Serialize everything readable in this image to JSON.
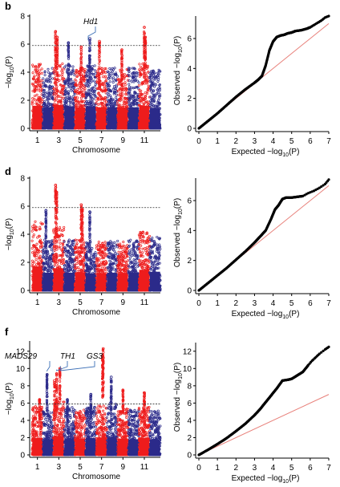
{
  "colors": {
    "odd_chromosome": "#ee1c1c",
    "even_chromosome": "#2b2a8a",
    "threshold_line": "#333333",
    "qq_points": "#000000",
    "qq_reference_line": "#e8807a",
    "callout_line": "#3b6fb6"
  },
  "chart_data": [
    {
      "panel": "b",
      "type": "scatter",
      "subtype": "manhattan",
      "xlabel": "Chromosome",
      "ylabel": "−log10(P)",
      "ylabel_parts": [
        "−log",
        "10",
        "(P)"
      ],
      "ylim": [
        0,
        8
      ],
      "yticks": [
        0,
        2,
        4,
        6,
        8
      ],
      "xticks": [
        "1",
        "3",
        "5",
        "7",
        "9",
        "11"
      ],
      "chromosomes": [
        1,
        2,
        3,
        4,
        5,
        6,
        7,
        8,
        9,
        10,
        11,
        12
      ],
      "threshold": 5.9,
      "noise_level": [
        4.6,
        4.3,
        4.8,
        4.5,
        4.3,
        4.5,
        4.3,
        4.3,
        4.3,
        4.3,
        4.6,
        4.2
      ],
      "peaks": [
        {
          "chromosome": 3,
          "position": 0.2,
          "value": 6.9
        },
        {
          "chromosome": 3,
          "position": 0.35,
          "value": 6.5
        },
        {
          "chromosome": 4,
          "position": 0.4,
          "value": 6.1
        },
        {
          "chromosome": 5,
          "position": 0.6,
          "value": 5.8
        },
        {
          "chromosome": 6,
          "position": 0.4,
          "value": 6.4
        },
        {
          "chromosome": 7,
          "position": 0.3,
          "value": 6.2
        },
        {
          "chromosome": 9,
          "position": 0.4,
          "value": 5.6
        },
        {
          "chromosome": 11,
          "position": 0.5,
          "value": 7.2
        },
        {
          "chromosome": 11,
          "position": 0.6,
          "value": 6.5
        }
      ],
      "annotations": [
        {
          "label": "Hd1",
          "chromosome": 6,
          "position": 0.25,
          "value": 6.1
        }
      ]
    },
    {
      "panel": "b",
      "type": "scatter",
      "subtype": "qq",
      "xlabel": "Expected −log10(P)",
      "xlabel_parts": [
        "Expected −log",
        "10",
        "(P)"
      ],
      "ylabel": "Observed −log10(P)",
      "ylabel_parts": [
        "Observed −log",
        "10",
        "(P)"
      ],
      "xlim": [
        0,
        7
      ],
      "ylim": [
        0,
        7.5
      ],
      "xticks": [
        0,
        1,
        2,
        3,
        4,
        5,
        6,
        7
      ],
      "yticks": [
        0,
        2,
        4,
        6
      ],
      "reference_slope": 1,
      "x": [
        0,
        0.5,
        1,
        1.5,
        2,
        2.5,
        3,
        3.2,
        3.4,
        3.6,
        3.8,
        4.0,
        4.2,
        4.4,
        4.6,
        4.8,
        5.0,
        5.2,
        5.5,
        5.8,
        6.0,
        6.2,
        6.4,
        6.6,
        6.8,
        7.0
      ],
      "y": [
        0,
        0.5,
        1.0,
        1.55,
        2.1,
        2.6,
        3.05,
        3.25,
        3.5,
        4.2,
        5.2,
        5.8,
        6.1,
        6.2,
        6.25,
        6.35,
        6.4,
        6.5,
        6.55,
        6.65,
        6.75,
        6.9,
        7.05,
        7.2,
        7.4,
        7.5
      ]
    },
    {
      "panel": "d",
      "type": "scatter",
      "subtype": "manhattan",
      "xlabel": "Chromosome",
      "ylabel": "−log10(P)",
      "ylabel_parts": [
        "−log",
        "10",
        "(P)"
      ],
      "ylim": [
        0,
        8
      ],
      "yticks": [
        0,
        2,
        4,
        6,
        8
      ],
      "xticks": [
        "1",
        "3",
        "5",
        "7",
        "9",
        "11"
      ],
      "chromosomes": [
        1,
        2,
        3,
        4,
        5,
        6,
        7,
        8,
        9,
        10,
        11,
        12
      ],
      "threshold": 5.9,
      "noise_level": [
        4.9,
        3.6,
        4.5,
        3.6,
        3.7,
        3.5,
        3.5,
        3.6,
        3.5,
        3.6,
        4.2,
        3.8
      ],
      "peaks": [
        {
          "chromosome": 2,
          "position": 0.3,
          "value": 5.7
        },
        {
          "chromosome": 3,
          "position": 0.2,
          "value": 7.5
        },
        {
          "chromosome": 3,
          "position": 0.3,
          "value": 7.0
        },
        {
          "chromosome": 5,
          "position": 0.6,
          "value": 6.1
        },
        {
          "chromosome": 5,
          "position": 0.7,
          "value": 5.8
        },
        {
          "chromosome": 6,
          "position": 0.4,
          "value": 5.6
        }
      ],
      "annotations": []
    },
    {
      "panel": "d",
      "type": "scatter",
      "subtype": "qq",
      "xlabel": "Expected −log10(P)",
      "xlabel_parts": [
        "Expected −log",
        "10",
        "(P)"
      ],
      "ylabel": "Observed −log10(P)",
      "ylabel_parts": [
        "Observed −log",
        "10",
        "(P)"
      ],
      "xlim": [
        0,
        7
      ],
      "ylim": [
        0,
        7.5
      ],
      "xticks": [
        0,
        1,
        2,
        3,
        4,
        5,
        6,
        7
      ],
      "yticks": [
        0,
        2,
        4,
        6
      ],
      "reference_slope": 1,
      "x": [
        0,
        0.5,
        1,
        1.5,
        2,
        2.5,
        3,
        3.3,
        3.6,
        3.9,
        4.1,
        4.3,
        4.5,
        4.7,
        5.0,
        5.3,
        5.6,
        5.9,
        6.2,
        6.5,
        6.8,
        7.0
      ],
      "y": [
        0,
        0.5,
        1.0,
        1.5,
        2.05,
        2.6,
        3.2,
        3.6,
        4.0,
        4.8,
        5.4,
        5.7,
        6.1,
        6.2,
        6.2,
        6.25,
        6.3,
        6.5,
        6.65,
        6.85,
        7.1,
        7.4
      ]
    },
    {
      "panel": "f",
      "type": "scatter",
      "subtype": "manhattan",
      "xlabel": "Chromosome",
      "ylabel": "−log10(P)",
      "ylabel_parts": [
        "−log",
        "10",
        "(P)"
      ],
      "ylim": [
        0,
        13
      ],
      "yticks": [
        0,
        2,
        4,
        6,
        8,
        10,
        12
      ],
      "xticks": [
        "1",
        "3",
        "5",
        "7",
        "9",
        "11"
      ],
      "chromosomes": [
        1,
        2,
        3,
        4,
        5,
        6,
        7,
        8,
        9,
        10,
        11,
        12
      ],
      "threshold": 5.9,
      "noise_level": [
        5.6,
        5.2,
        6.2,
        5.5,
        5.3,
        5.6,
        5.8,
        6.0,
        5.4,
        5.2,
        5.6,
        5.2
      ],
      "peaks": [
        {
          "chromosome": 1,
          "position": 0.7,
          "value": 6.4
        },
        {
          "chromosome": 2,
          "position": 0.4,
          "value": 9.3
        },
        {
          "chromosome": 3,
          "position": 0.1,
          "value": 8.6
        },
        {
          "chromosome": 3,
          "position": 0.3,
          "value": 9.4
        },
        {
          "chromosome": 3,
          "position": 0.6,
          "value": 10.0
        },
        {
          "chromosome": 4,
          "position": 0.3,
          "value": 6.4
        },
        {
          "chromosome": 6,
          "position": 0.5,
          "value": 7.0
        },
        {
          "chromosome": 7,
          "position": 0.6,
          "value": 11.5
        },
        {
          "chromosome": 7,
          "position": 0.65,
          "value": 12.3
        },
        {
          "chromosome": 8,
          "position": 0.4,
          "value": 9.0
        },
        {
          "chromosome": 9,
          "position": 0.5,
          "value": 7.5
        },
        {
          "chromosome": 11,
          "position": 0.5,
          "value": 7.2
        }
      ],
      "annotations": [
        {
          "label": "MADS29",
          "chromosome": 2,
          "position": 0.4,
          "value": 9.5
        },
        {
          "label": "TH1",
          "chromosome": 3,
          "position": 0.3,
          "value": 9.6
        },
        {
          "label": "GS3",
          "chromosome": 3,
          "position": 0.65,
          "value": 10.0
        }
      ]
    },
    {
      "panel": "f",
      "type": "scatter",
      "subtype": "qq",
      "xlabel": "Expected −log10(P)",
      "xlabel_parts": [
        "Expected −log",
        "10",
        "(P)"
      ],
      "ylabel": "Observed −log10(P)",
      "ylabel_parts": [
        "Observed −log",
        "10",
        "(P)"
      ],
      "xlim": [
        0,
        7
      ],
      "ylim": [
        0,
        13
      ],
      "xticks": [
        0,
        1,
        2,
        3,
        4,
        5,
        6,
        7
      ],
      "yticks": [
        0,
        2,
        4,
        6,
        8,
        10,
        12
      ],
      "reference_slope": 1,
      "x": [
        0,
        0.5,
        1,
        1.5,
        2,
        2.5,
        3,
        3.3,
        3.6,
        3.9,
        4.2,
        4.5,
        4.8,
        5.0,
        5.3,
        5.6,
        5.9,
        6.1,
        6.3,
        6.5,
        6.8,
        7.0
      ],
      "y": [
        0,
        0.6,
        1.25,
        1.95,
        2.75,
        3.6,
        4.6,
        5.3,
        6.1,
        6.9,
        7.7,
        8.6,
        8.7,
        8.8,
        9.2,
        9.6,
        10.4,
        10.9,
        11.3,
        11.7,
        12.2,
        12.5
      ]
    }
  ]
}
